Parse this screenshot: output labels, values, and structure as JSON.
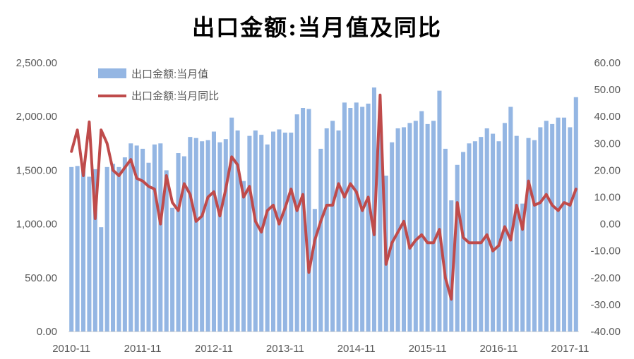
{
  "chart_data": {
    "type": "bar",
    "title": "出口金额:当月值及同比",
    "y_left": {
      "ylim": [
        0,
        2500
      ],
      "ticks": [
        "0.00",
        "500.00",
        "1,000.00",
        "1,500.00",
        "2,000.00",
        "2,500.00"
      ]
    },
    "y_right": {
      "ylim": [
        -40,
        60
      ],
      "ticks": [
        "-40.00",
        "-30.00",
        "-20.00",
        "-10.00",
        "0.00",
        "10.00",
        "20.00",
        "30.00",
        "40.00",
        "50.00",
        "60.00"
      ]
    },
    "x_ticks": [
      "2010-11",
      "2011-11",
      "2012-11",
      "2013-11",
      "2014-11",
      "2015-11",
      "2016-11",
      "2017-11"
    ],
    "legend": {
      "position": "top-left",
      "entries": [
        "出口金额:当月值",
        "出口金额:当月同比"
      ]
    },
    "colors": {
      "bars": "#94B6E3",
      "line": "#BF4B4B",
      "axis_text": "#595959"
    },
    "series": [
      {
        "name": "出口金额:当月值",
        "axis": "left",
        "type": "bar",
        "values": [
          1530,
          1540,
          1510,
          1440,
          1510,
          970,
          1530,
          1560,
          1530,
          1620,
          1750,
          1730,
          1700,
          1570,
          1740,
          1750,
          1500,
          1150,
          1660,
          1630,
          1810,
          1800,
          1770,
          1780,
          1860,
          1760,
          1790,
          1990,
          1870,
          1400,
          1820,
          1870,
          1830,
          1740,
          1860,
          1880,
          1850,
          1850,
          2020,
          2080,
          2070,
          1140,
          1700,
          1890,
          1960,
          1870,
          2130,
          2080,
          2130,
          2090,
          2120,
          2270,
          2000,
          1450,
          1760,
          1890,
          1900,
          1940,
          1960,
          2050,
          1930,
          1960,
          2240,
          1700,
          1220,
          1550,
          1670,
          1750,
          1770,
          1810,
          1890,
          1840,
          1770,
          1940,
          2090,
          1820,
          1190,
          1800,
          1780,
          1900,
          1960,
          1930,
          1990,
          1990,
          1900,
          2180
        ]
      },
      {
        "name": "出口金额:当月同比",
        "axis": "right",
        "type": "line",
        "values": [
          27,
          35,
          18,
          38,
          2,
          35,
          30,
          20,
          18,
          21,
          24,
          17,
          16,
          14,
          13,
          0,
          18,
          8,
          5,
          15,
          11,
          1,
          3,
          10,
          12,
          3,
          13,
          25,
          22,
          10,
          14,
          1,
          -3,
          5,
          7,
          0,
          6,
          13,
          5,
          11,
          -18,
          -6,
          1,
          7,
          7,
          15,
          10,
          15,
          12,
          5,
          10,
          -4,
          48,
          -15,
          -7,
          -3,
          1,
          -9,
          -6,
          -4,
          -7,
          -7,
          -2,
          -20,
          -28,
          8,
          -5,
          -7,
          -7,
          -7,
          -4,
          -10,
          -8,
          -1,
          -6,
          7,
          -2,
          16,
          7,
          8,
          11,
          7,
          5,
          8,
          7,
          13
        ]
      }
    ]
  }
}
